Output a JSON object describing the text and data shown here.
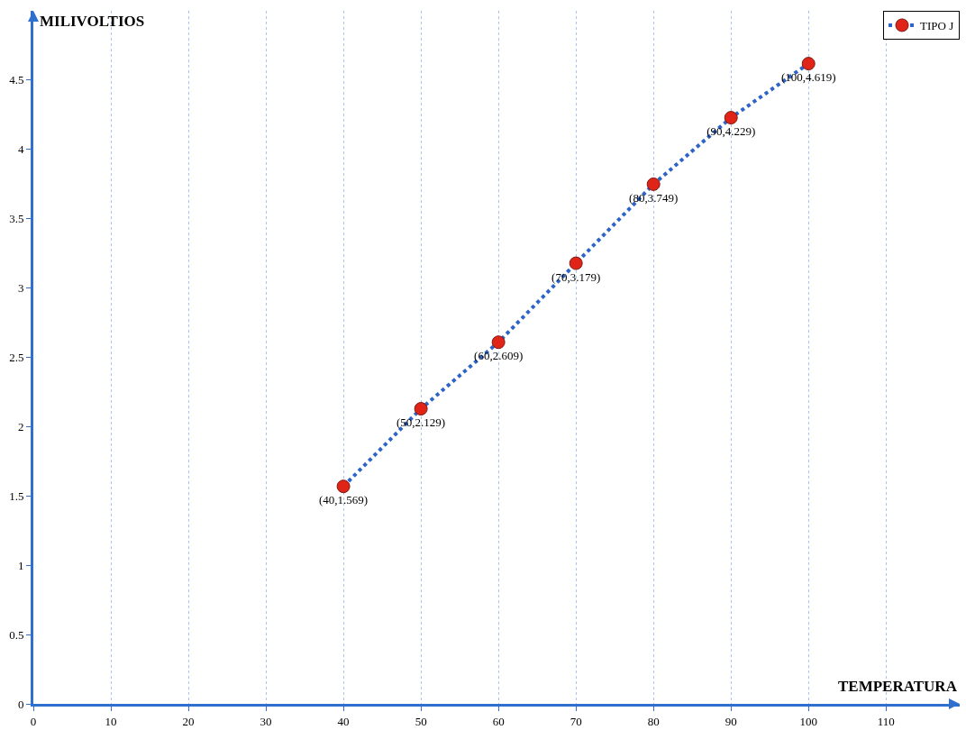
{
  "chart_data": {
    "type": "line",
    "xlabel": "TEMPERATURA",
    "ylabel": "MILIVOLTIOS",
    "x": [
      40,
      50,
      60,
      70,
      80,
      90,
      100
    ],
    "series": [
      {
        "name": "TIPO J",
        "color": "#2e64c8",
        "colors": [
          "#e02418",
          "#e02418",
          "#e02418",
          "#e02418",
          "#e02418",
          "#e02418",
          "#e02418"
        ],
        "values": [
          1.569,
          2.129,
          2.609,
          3.179,
          3.749,
          4.229,
          4.619
        ],
        "value_labels": [
          "(40,1.569)",
          "(50,2.129)",
          "(60,2.609)",
          "(70,3.179)",
          "(80,3.749)",
          "(90,4.229)",
          "(100,4.619)"
        ]
      }
    ],
    "xlim": [
      0,
      119.5
    ],
    "xticks": [
      0,
      10,
      20,
      30,
      40,
      50,
      60,
      70,
      80,
      90,
      100,
      110
    ],
    "ylim": [
      0,
      5
    ],
    "yticks": [
      0,
      0.5,
      1,
      1.5,
      2,
      2.5,
      3,
      3.5,
      4,
      4.5
    ],
    "grid": "x",
    "legend": "top right",
    "marker": "circle",
    "line_style": "dotted"
  }
}
